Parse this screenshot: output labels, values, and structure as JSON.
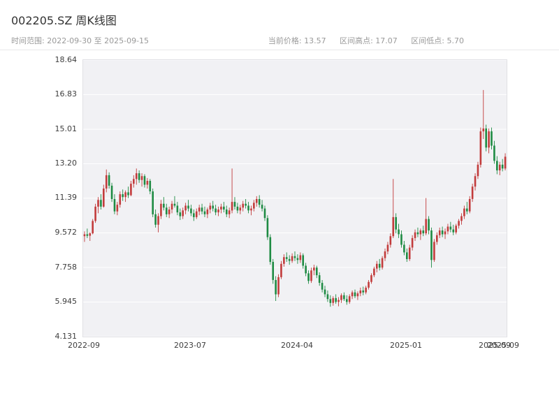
{
  "header": {
    "title": "002205.SZ 周K线图",
    "range_label": "时间范围: 2022-09-30 至 2025-09-15",
    "stats": {
      "current": "当前价格: 13.57",
      "high": "区间高点: 17.07",
      "low": "区间低点: 5.70"
    }
  },
  "chart_data": {
    "type": "candlestick",
    "title": "002205.SZ 周K线图",
    "frequency": "weekly",
    "start_date": "2022-09-30",
    "end_date": "2025-09-15",
    "current_price": 13.57,
    "range_high": 17.07,
    "range_low": 5.7,
    "ylim": [
      4.131,
      18.64
    ],
    "y_ticks": [
      4.131,
      5.945,
      7.758,
      9.572,
      11.39,
      13.2,
      15.01,
      16.83,
      18.64
    ],
    "y_tick_labels": [
      "4.131",
      "5.945",
      "7.758",
      "9.572",
      "11.39",
      "13.20",
      "15.01",
      "16.83",
      "18.64"
    ],
    "x_ticks": [
      {
        "pos": 0,
        "label": "2022-09"
      },
      {
        "pos": 39,
        "label": "2023-07"
      },
      {
        "pos": 78,
        "label": "2024-04"
      },
      {
        "pos": 118,
        "label": "2025-01"
      },
      {
        "pos": 150.5,
        "label": "2025-09"
      },
      {
        "pos": 153.5,
        "label": "2025-09"
      }
    ],
    "up_color": "#c23b3b",
    "down_color": "#1e8b43",
    "plot_bg": "#f1f1f4",
    "grid_color": "#ffffff",
    "candles": [
      [
        9.4,
        9.65,
        9.1,
        9.5
      ],
      [
        9.5,
        9.8,
        9.3,
        9.42
      ],
      [
        9.42,
        9.6,
        9.15,
        9.55
      ],
      [
        9.55,
        10.3,
        9.5,
        10.2
      ],
      [
        10.2,
        11.1,
        10.1,
        10.95
      ],
      [
        10.95,
        11.45,
        10.6,
        11.3
      ],
      [
        11.3,
        11.6,
        10.8,
        10.95
      ],
      [
        10.95,
        12.1,
        10.9,
        11.9
      ],
      [
        11.9,
        12.9,
        11.7,
        12.6
      ],
      [
        12.6,
        12.75,
        11.9,
        12.05
      ],
      [
        12.05,
        12.2,
        11.2,
        11.35
      ],
      [
        11.35,
        11.6,
        10.55,
        10.7
      ],
      [
        10.7,
        11.2,
        10.5,
        11.05
      ],
      [
        11.05,
        11.75,
        10.9,
        11.6
      ],
      [
        11.6,
        11.85,
        11.25,
        11.45
      ],
      [
        11.45,
        11.8,
        11.2,
        11.7
      ],
      [
        11.7,
        12.0,
        11.4,
        11.55
      ],
      [
        11.55,
        12.3,
        11.5,
        12.15
      ],
      [
        12.15,
        12.6,
        11.95,
        12.4
      ],
      [
        12.4,
        12.95,
        12.1,
        12.7
      ],
      [
        12.7,
        12.85,
        12.2,
        12.35
      ],
      [
        12.35,
        12.7,
        12.0,
        12.55
      ],
      [
        12.55,
        12.65,
        11.95,
        12.1
      ],
      [
        12.1,
        12.45,
        11.9,
        12.3
      ],
      [
        12.3,
        12.4,
        11.6,
        11.75
      ],
      [
        11.75,
        11.9,
        10.4,
        10.55
      ],
      [
        10.55,
        10.8,
        9.85,
        10.0
      ],
      [
        10.0,
        10.6,
        9.6,
        10.45
      ],
      [
        10.45,
        11.3,
        10.3,
        11.1
      ],
      [
        11.1,
        11.45,
        10.75,
        10.9
      ],
      [
        10.9,
        11.1,
        10.4,
        10.55
      ],
      [
        10.55,
        10.95,
        10.35,
        10.8
      ],
      [
        10.8,
        11.25,
        10.6,
        11.1
      ],
      [
        11.1,
        11.5,
        10.9,
        11.0
      ],
      [
        11.0,
        11.2,
        10.5,
        10.65
      ],
      [
        10.65,
        10.85,
        10.25,
        10.45
      ],
      [
        10.45,
        10.9,
        10.3,
        10.75
      ],
      [
        10.75,
        11.15,
        10.55,
        11.0
      ],
      [
        11.0,
        11.3,
        10.7,
        10.85
      ],
      [
        10.85,
        11.05,
        10.45,
        10.6
      ],
      [
        10.6,
        10.8,
        10.2,
        10.4
      ],
      [
        10.4,
        10.85,
        10.3,
        10.7
      ],
      [
        10.7,
        11.05,
        10.5,
        10.9
      ],
      [
        10.9,
        11.1,
        10.55,
        10.7
      ],
      [
        10.7,
        10.95,
        10.4,
        10.55
      ],
      [
        10.55,
        10.9,
        10.35,
        10.8
      ],
      [
        10.8,
        11.15,
        10.6,
        11.0
      ],
      [
        11.0,
        11.25,
        10.7,
        10.85
      ],
      [
        10.85,
        11.05,
        10.5,
        10.65
      ],
      [
        10.65,
        10.95,
        10.45,
        10.8
      ],
      [
        10.8,
        11.1,
        10.6,
        10.95
      ],
      [
        10.95,
        11.2,
        10.65,
        10.8
      ],
      [
        10.8,
        11.0,
        10.4,
        10.55
      ],
      [
        10.55,
        10.9,
        10.35,
        10.75
      ],
      [
        10.75,
        12.95,
        10.6,
        11.2
      ],
      [
        11.2,
        11.45,
        10.8,
        10.95
      ],
      [
        10.95,
        11.15,
        10.6,
        10.75
      ],
      [
        10.75,
        11.05,
        10.55,
        10.9
      ],
      [
        10.9,
        11.25,
        10.7,
        11.1
      ],
      [
        11.1,
        11.35,
        10.85,
        11.0
      ],
      [
        11.0,
        11.2,
        10.6,
        10.75
      ],
      [
        10.75,
        11.0,
        10.5,
        10.85
      ],
      [
        10.85,
        11.3,
        10.7,
        11.15
      ],
      [
        11.15,
        11.5,
        10.95,
        11.35
      ],
      [
        11.35,
        11.55,
        10.9,
        11.05
      ],
      [
        11.05,
        11.3,
        10.7,
        10.85
      ],
      [
        10.85,
        11.0,
        10.2,
        10.35
      ],
      [
        10.35,
        10.5,
        9.2,
        9.35
      ],
      [
        9.35,
        9.5,
        7.9,
        8.05
      ],
      [
        8.05,
        8.2,
        6.9,
        7.1
      ],
      [
        7.1,
        7.3,
        6.0,
        6.35
      ],
      [
        6.35,
        7.4,
        6.2,
        7.25
      ],
      [
        7.25,
        8.1,
        7.15,
        7.95
      ],
      [
        7.95,
        8.45,
        7.8,
        8.3
      ],
      [
        8.3,
        8.55,
        8.05,
        8.2
      ],
      [
        8.2,
        8.4,
        7.9,
        8.1
      ],
      [
        8.1,
        8.5,
        8.0,
        8.35
      ],
      [
        8.35,
        8.6,
        8.1,
        8.25
      ],
      [
        8.25,
        8.45,
        7.95,
        8.15
      ],
      [
        8.15,
        8.55,
        8.0,
        8.4
      ],
      [
        8.4,
        8.5,
        7.7,
        7.85
      ],
      [
        7.85,
        8.0,
        7.3,
        7.45
      ],
      [
        7.45,
        7.6,
        6.9,
        7.05
      ],
      [
        7.05,
        7.75,
        6.95,
        7.6
      ],
      [
        7.6,
        7.9,
        7.35,
        7.75
      ],
      [
        7.75,
        7.85,
        7.2,
        7.35
      ],
      [
        7.35,
        7.5,
        6.8,
        6.95
      ],
      [
        6.95,
        7.1,
        6.45,
        6.6
      ],
      [
        6.6,
        6.8,
        6.2,
        6.35
      ],
      [
        6.35,
        6.55,
        5.95,
        6.1
      ],
      [
        6.1,
        6.3,
        5.7,
        5.9
      ],
      [
        5.9,
        6.25,
        5.75,
        6.15
      ],
      [
        6.15,
        6.35,
        5.85,
        5.95
      ],
      [
        5.95,
        6.2,
        5.72,
        6.05
      ],
      [
        6.05,
        6.4,
        5.9,
        6.3
      ],
      [
        6.3,
        6.45,
        6.0,
        6.1
      ],
      [
        6.1,
        6.3,
        5.8,
        5.95
      ],
      [
        5.95,
        6.35,
        5.85,
        6.25
      ],
      [
        6.25,
        6.55,
        6.1,
        6.45
      ],
      [
        6.45,
        6.6,
        6.15,
        6.25
      ],
      [
        6.25,
        6.5,
        6.05,
        6.4
      ],
      [
        6.4,
        6.7,
        6.25,
        6.55
      ],
      [
        6.55,
        6.75,
        6.3,
        6.45
      ],
      [
        6.45,
        6.8,
        6.35,
        6.7
      ],
      [
        6.7,
        7.1,
        6.6,
        7.0
      ],
      [
        7.0,
        7.45,
        6.9,
        7.35
      ],
      [
        7.35,
        7.8,
        7.25,
        7.7
      ],
      [
        7.7,
        8.1,
        7.5,
        7.95
      ],
      [
        7.95,
        8.2,
        7.6,
        7.75
      ],
      [
        7.75,
        8.35,
        7.65,
        8.25
      ],
      [
        8.25,
        8.75,
        8.1,
        8.6
      ],
      [
        8.6,
        9.1,
        8.45,
        8.95
      ],
      [
        8.95,
        9.55,
        8.8,
        9.4
      ],
      [
        9.4,
        12.4,
        9.3,
        10.4
      ],
      [
        10.4,
        10.6,
        9.55,
        9.75
      ],
      [
        9.75,
        10.05,
        9.3,
        9.5
      ],
      [
        9.5,
        9.7,
        8.8,
        8.95
      ],
      [
        8.95,
        9.15,
        8.4,
        8.55
      ],
      [
        8.55,
        8.75,
        8.05,
        8.2
      ],
      [
        8.2,
        8.95,
        8.1,
        8.8
      ],
      [
        8.8,
        9.45,
        8.65,
        9.3
      ],
      [
        9.3,
        9.75,
        9.15,
        9.6
      ],
      [
        9.6,
        9.85,
        9.35,
        9.5
      ],
      [
        9.5,
        9.8,
        9.2,
        9.7
      ],
      [
        9.7,
        9.95,
        9.4,
        9.55
      ],
      [
        9.55,
        11.4,
        9.45,
        10.3
      ],
      [
        10.3,
        10.45,
        9.5,
        9.7
      ],
      [
        9.7,
        9.85,
        7.75,
        8.15
      ],
      [
        8.15,
        9.25,
        8.05,
        9.1
      ],
      [
        9.1,
        9.6,
        8.95,
        9.45
      ],
      [
        9.45,
        9.85,
        9.3,
        9.7
      ],
      [
        9.7,
        9.9,
        9.35,
        9.5
      ],
      [
        9.5,
        9.8,
        9.25,
        9.65
      ],
      [
        9.65,
        10.05,
        9.5,
        9.9
      ],
      [
        9.9,
        10.15,
        9.6,
        9.75
      ],
      [
        9.75,
        10.0,
        9.45,
        9.6
      ],
      [
        9.6,
        10.05,
        9.5,
        9.95
      ],
      [
        9.95,
        10.3,
        9.8,
        10.2
      ],
      [
        10.2,
        10.6,
        10.0,
        10.45
      ],
      [
        10.45,
        11.0,
        10.3,
        10.85
      ],
      [
        10.85,
        11.2,
        10.55,
        10.7
      ],
      [
        10.7,
        11.5,
        10.6,
        11.35
      ],
      [
        11.35,
        12.15,
        11.2,
        12.0
      ],
      [
        12.0,
        12.7,
        11.8,
        12.55
      ],
      [
        12.55,
        13.3,
        12.4,
        13.15
      ],
      [
        13.15,
        15.1,
        13.0,
        14.9
      ],
      [
        14.9,
        17.07,
        14.5,
        15.05
      ],
      [
        15.05,
        15.25,
        13.85,
        14.05
      ],
      [
        14.05,
        15.05,
        13.75,
        14.9
      ],
      [
        14.9,
        15.1,
        13.95,
        14.15
      ],
      [
        14.15,
        14.4,
        13.2,
        13.35
      ],
      [
        13.35,
        13.6,
        12.65,
        12.85
      ],
      [
        12.85,
        13.3,
        12.6,
        13.15
      ],
      [
        13.15,
        13.45,
        12.8,
        12.95
      ],
      [
        12.95,
        13.75,
        12.85,
        13.57
      ]
    ]
  }
}
